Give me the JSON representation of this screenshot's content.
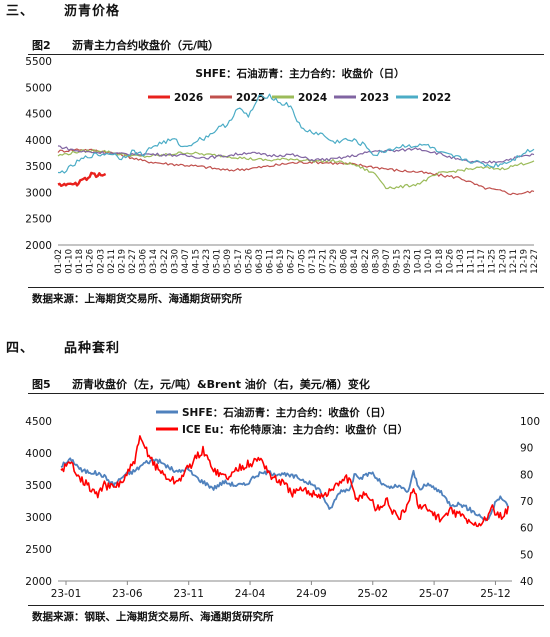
{
  "sections": [
    {
      "num": "三、",
      "title": "沥青价格"
    },
    {
      "num": "四、",
      "title": "品种套利"
    }
  ],
  "colors": {
    "s2026": "#e8211d",
    "s2025": "#c0504d",
    "s2024": "#9bbb59",
    "s2023": "#8064a2",
    "s2022": "#4bacc6",
    "blue": "#4f81bd",
    "red": "#ff0000"
  },
  "chart_data": [
    {
      "type": "line",
      "figure_number": "图2",
      "title": "沥青主力合约收盘价（元/吨）",
      "subtitle": "SHFE：石油沥青：主力合约：收盘价（日）",
      "source": "数据来源：上海期货交易所、海通期货研究所",
      "ylim": [
        2000,
        5500
      ],
      "yticks": [
        2000,
        2500,
        3000,
        3500,
        4000,
        4500,
        5000,
        5500
      ],
      "x_labels": [
        "01-02",
        "01-10",
        "01-18",
        "01-26",
        "02-03",
        "02-11",
        "02-19",
        "02-27",
        "03-06",
        "03-14",
        "03-22",
        "03-30",
        "04-07",
        "04-15",
        "04-23",
        "05-01",
        "05-09",
        "05-17",
        "05-26",
        "06-03",
        "06-11",
        "06-19",
        "06-27",
        "07-05",
        "07-13",
        "07-21",
        "07-29",
        "08-06",
        "08-14",
        "08-22",
        "08-30",
        "09-07",
        "09-15",
        "09-23",
        "10-01",
        "10-10",
        "10-18",
        "10-26",
        "11-03",
        "11-11",
        "11-17",
        "11-25",
        "12-03",
        "12-11",
        "12-19",
        "12-27"
      ],
      "series": [
        {
          "name": "2026",
          "color": "#e8211d",
          "width": 2.4,
          "points": [
            [
              0,
              3130
            ],
            [
              0.3,
              3150
            ],
            [
              0.6,
              3140
            ],
            [
              0.9,
              3170
            ],
            [
              1.2,
              3160
            ],
            [
              1.5,
              3180
            ],
            [
              1.8,
              3140
            ],
            [
              2.1,
              3230
            ],
            [
              2.4,
              3280
            ],
            [
              2.7,
              3250
            ],
            [
              3.0,
              3320
            ],
            [
              3.3,
              3380
            ],
            [
              3.6,
              3300
            ],
            [
              3.9,
              3360
            ],
            [
              4.2,
              3310
            ],
            [
              4.5,
              3350
            ]
          ]
        },
        {
          "name": "2025",
          "color": "#c0504d",
          "width": 1.2,
          "points": [
            [
              0,
              3780
            ],
            [
              2,
              3820
            ],
            [
              4,
              3790
            ],
            [
              6,
              3720
            ],
            [
              8,
              3600
            ],
            [
              10,
              3550
            ],
            [
              12,
              3520
            ],
            [
              14,
              3480
            ],
            [
              16,
              3420
            ],
            [
              18,
              3450
            ],
            [
              20,
              3500
            ],
            [
              22,
              3560
            ],
            [
              24,
              3580
            ],
            [
              26,
              3560
            ],
            [
              28,
              3530
            ],
            [
              30,
              3480
            ],
            [
              32,
              3420
            ],
            [
              34,
              3390
            ],
            [
              36,
              3330
            ],
            [
              38,
              3280
            ],
            [
              40,
              3100
            ],
            [
              42,
              3020
            ],
            [
              43,
              2970
            ],
            [
              44,
              2990
            ],
            [
              45,
              3020
            ]
          ]
        },
        {
          "name": "2024",
          "color": "#9bbb59",
          "width": 1.2,
          "points": [
            [
              0,
              3700
            ],
            [
              2,
              3780
            ],
            [
              4,
              3800
            ],
            [
              6,
              3720
            ],
            [
              8,
              3680
            ],
            [
              10,
              3710
            ],
            [
              12,
              3760
            ],
            [
              14,
              3720
            ],
            [
              16,
              3690
            ],
            [
              18,
              3640
            ],
            [
              20,
              3610
            ],
            [
              22,
              3640
            ],
            [
              24,
              3600
            ],
            [
              26,
              3600
            ],
            [
              28,
              3530
            ],
            [
              30,
              3350
            ],
            [
              31,
              3100
            ],
            [
              32,
              3090
            ],
            [
              34,
              3160
            ],
            [
              36,
              3360
            ],
            [
              38,
              3420
            ],
            [
              40,
              3470
            ],
            [
              42,
              3450
            ],
            [
              44,
              3550
            ],
            [
              45,
              3600
            ]
          ]
        },
        {
          "name": "2023",
          "color": "#8064a2",
          "width": 1.2,
          "points": [
            [
              0,
              3880
            ],
            [
              2,
              3780
            ],
            [
              4,
              3760
            ],
            [
              6,
              3730
            ],
            [
              8,
              3730
            ],
            [
              10,
              3720
            ],
            [
              12,
              3700
            ],
            [
              14,
              3660
            ],
            [
              16,
              3700
            ],
            [
              18,
              3760
            ],
            [
              20,
              3700
            ],
            [
              22,
              3720
            ],
            [
              24,
              3620
            ],
            [
              26,
              3630
            ],
            [
              28,
              3700
            ],
            [
              30,
              3790
            ],
            [
              32,
              3790
            ],
            [
              34,
              3840
            ],
            [
              36,
              3740
            ],
            [
              38,
              3610
            ],
            [
              40,
              3560
            ],
            [
              42,
              3600
            ],
            [
              44,
              3690
            ],
            [
              45,
              3720
            ]
          ]
        },
        {
          "name": "2022",
          "color": "#4bacc6",
          "width": 1.2,
          "points": [
            [
              0,
              3350
            ],
            [
              1,
              3450
            ],
            [
              2,
              3600
            ],
            [
              3,
              3700
            ],
            [
              4,
              3720
            ],
            [
              5,
              3750
            ],
            [
              6,
              3650
            ],
            [
              7,
              3780
            ],
            [
              8,
              3720
            ],
            [
              9,
              3880
            ],
            [
              10,
              3960
            ],
            [
              11,
              4000
            ],
            [
              12,
              3850
            ],
            [
              13,
              3980
            ],
            [
              14,
              4050
            ],
            [
              15,
              4200
            ],
            [
              16,
              4300
            ],
            [
              17,
              4600
            ],
            [
              18,
              4450
            ],
            [
              19,
              4800
            ],
            [
              20,
              4850
            ],
            [
              21,
              4700
            ],
            [
              22,
              4650
            ],
            [
              23,
              4200
            ],
            [
              24,
              4150
            ],
            [
              25,
              4100
            ],
            [
              26,
              3950
            ],
            [
              27,
              4000
            ],
            [
              28,
              3980
            ],
            [
              29,
              3900
            ],
            [
              30,
              3700
            ],
            [
              31,
              3800
            ],
            [
              32,
              3850
            ],
            [
              33,
              3900
            ],
            [
              34,
              3880
            ],
            [
              35,
              3900
            ],
            [
              36,
              3750
            ],
            [
              37,
              3700
            ],
            [
              38,
              3650
            ],
            [
              39,
              3600
            ],
            [
              40,
              3550
            ],
            [
              41,
              3500
            ],
            [
              42,
              3550
            ],
            [
              43,
              3620
            ],
            [
              44,
              3760
            ],
            [
              45,
              3820
            ]
          ]
        }
      ]
    },
    {
      "type": "line",
      "figure_number": "图5",
      "title": "沥青收盘价（左，元/吨）&Brent 油价（右，美元/桶）变化",
      "source": "数据来源：钢联、上海期货交易所、海通期货研究所",
      "ylim_left": [
        2000,
        4500
      ],
      "yticks_left": [
        2000,
        2500,
        3000,
        3500,
        4000,
        4500
      ],
      "ylim_right": [
        40,
        100
      ],
      "yticks_right": [
        40,
        50,
        60,
        70,
        80,
        90,
        100
      ],
      "x_labels": [
        "23-01",
        "23-06",
        "23-11",
        "24-04",
        "24-09",
        "25-02",
        "25-07",
        "25-12"
      ],
      "series": [
        {
          "name": "SHFE：石油沥青：主力合约：收盘价（日）",
          "color": "#4f81bd",
          "axis": "left",
          "points": [
            [
              0,
              3800
            ],
            [
              2,
              3900
            ],
            [
              4,
              3720
            ],
            [
              6,
              3700
            ],
            [
              8,
              3650
            ],
            [
              10,
              3500
            ],
            [
              12,
              3650
            ],
            [
              14,
              3720
            ],
            [
              16,
              3850
            ],
            [
              18,
              3900
            ],
            [
              20,
              3800
            ],
            [
              22,
              3700
            ],
            [
              24,
              3750
            ],
            [
              26,
              3600
            ],
            [
              27,
              3550
            ],
            [
              29,
              3450
            ],
            [
              31,
              3550
            ],
            [
              33,
              3500
            ],
            [
              35,
              3500
            ],
            [
              37,
              3650
            ],
            [
              39,
              3700
            ],
            [
              41,
              3680
            ],
            [
              43,
              3650
            ],
            [
              45,
              3620
            ],
            [
              47,
              3540
            ],
            [
              49,
              3440
            ],
            [
              50,
              3300
            ],
            [
              51,
              3100
            ],
            [
              53,
              3400
            ],
            [
              55,
              3450
            ],
            [
              56,
              3700
            ],
            [
              57,
              3600
            ],
            [
              59,
              3700
            ],
            [
              60,
              3600
            ],
            [
              62,
              3450
            ],
            [
              64,
              3480
            ],
            [
              66,
              3400
            ],
            [
              67,
              3700
            ],
            [
              68,
              3450
            ],
            [
              70,
              3500
            ],
            [
              72,
              3400
            ],
            [
              74,
              3200
            ],
            [
              76,
              3200
            ],
            [
              78,
              3100
            ],
            [
              80,
              3000
            ],
            [
              81,
              2950
            ],
            [
              82,
              3100
            ],
            [
              83,
              3300
            ],
            [
              84,
              3280
            ],
            [
              85,
              3150
            ]
          ]
        },
        {
          "name": "ICE Eu：布伦特原油：主力合约：收盘价（日）",
          "color": "#ff0000",
          "axis": "right",
          "points": [
            [
              0,
              82
            ],
            [
              2,
              84
            ],
            [
              4,
              78
            ],
            [
              6,
              74
            ],
            [
              7,
              72
            ],
            [
              8,
              76
            ],
            [
              10,
              75
            ],
            [
              12,
              78
            ],
            [
              14,
              85
            ],
            [
              15,
              93
            ],
            [
              16,
              90
            ],
            [
              18,
              83
            ],
            [
              20,
              79
            ],
            [
              22,
              77
            ],
            [
              24,
              82
            ],
            [
              26,
              87
            ],
            [
              27,
              89
            ],
            [
              28,
              85
            ],
            [
              30,
              80
            ],
            [
              32,
              79
            ],
            [
              34,
              83
            ],
            [
              36,
              84
            ],
            [
              38,
              86
            ],
            [
              40,
              79
            ],
            [
              42,
              77
            ],
            [
              44,
              73
            ],
            [
              46,
              74
            ],
            [
              48,
              73
            ],
            [
              50,
              72
            ],
            [
              52,
              75
            ],
            [
              54,
              79
            ],
            [
              55,
              77
            ],
            [
              56,
              71
            ],
            [
              58,
              73
            ],
            [
              60,
              67
            ],
            [
              62,
              70
            ],
            [
              64,
              63
            ],
            [
              66,
              68
            ],
            [
              67,
              76
            ],
            [
              68,
              68
            ],
            [
              70,
              67
            ],
            [
              72,
              63
            ],
            [
              74,
              66
            ],
            [
              76,
              65
            ],
            [
              78,
              61
            ],
            [
              80,
              62
            ],
            [
              81,
              64
            ],
            [
              82,
              67
            ],
            [
              83,
              65
            ],
            [
              84,
              63
            ],
            [
              85,
              68
            ]
          ]
        }
      ]
    }
  ]
}
